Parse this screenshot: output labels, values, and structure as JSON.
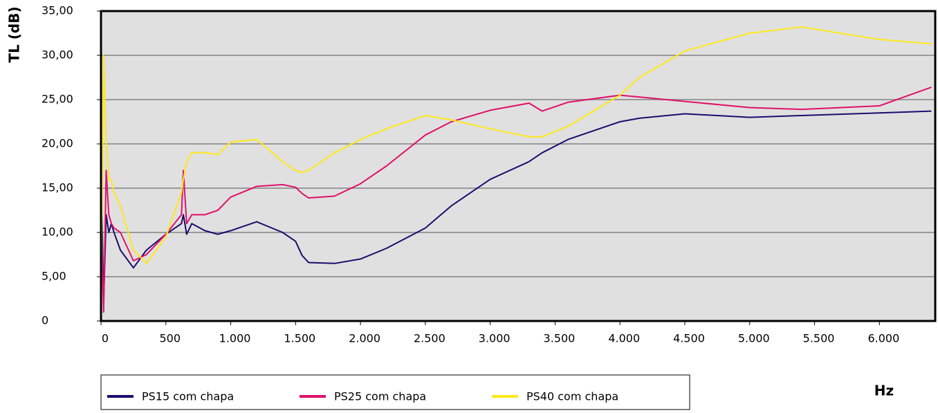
{
  "chart_data": {
    "type": "line",
    "y_label": "TL (dB)",
    "x_label": "Hz",
    "x": [
      0,
      20,
      40,
      60,
      80,
      100,
      150,
      250,
      350,
      500,
      620,
      635,
      660,
      700,
      800,
      900,
      1000,
      1200,
      1400,
      1500,
      1550,
      1600,
      1800,
      2000,
      2200,
      2500,
      2700,
      3000,
      3300,
      3400,
      3600,
      4000,
      4150,
      4500,
      5000,
      5400,
      6000,
      6400
    ],
    "series": [
      {
        "name": "PS15 com chapa",
        "color": "#1c0b6e",
        "values": [
          18,
          2,
          12,
          10,
          11,
          10,
          8,
          6,
          8,
          9.8,
          11,
          12,
          9.8,
          11,
          10.2,
          9.8,
          10.2,
          11.2,
          10,
          9,
          7.4,
          6.6,
          6.5,
          7,
          8.2,
          10.5,
          13,
          16,
          18,
          19,
          20.5,
          22.5,
          22.9,
          23.4,
          23,
          23.2,
          23.5,
          23.7
        ]
      },
      {
        "name": "PS25 com chapa",
        "color": "#e0106a",
        "values": [
          12,
          1,
          17,
          12,
          11,
          10.5,
          10,
          6.8,
          7.5,
          9.8,
          12,
          17,
          11,
          12,
          12,
          12.5,
          14,
          15.2,
          15.4,
          15.1,
          14.4,
          13.9,
          14.1,
          15.5,
          17.5,
          21,
          22.5,
          23.8,
          24.6,
          23.7,
          24.7,
          25.5,
          25.3,
          24.8,
          24.1,
          23.9,
          24.3,
          26.4
        ]
      },
      {
        "name": "PS40 com chapa",
        "color": "#ffe81a",
        "values": [
          2,
          30,
          20,
          16,
          16,
          14.5,
          13,
          8,
          6.5,
          9.5,
          14.5,
          16,
          18,
          19,
          19,
          18.8,
          20.2,
          20.5,
          18,
          17,
          16.8,
          17,
          19,
          20.5,
          21.7,
          23.2,
          22.7,
          21.7,
          20.8,
          20.8,
          22,
          25.5,
          27.5,
          30.5,
          32.5,
          33.2,
          31.8,
          31.3
        ]
      }
    ],
    "xlim": [
      0,
      6430
    ],
    "ylim": [
      0,
      35
    ],
    "xticks": [
      0,
      500,
      {
        "value": 1000,
        "label": "1.000"
      },
      {
        "value": 1500,
        "label": "1.500"
      },
      {
        "value": 2000,
        "label": "2.000"
      },
      {
        "value": 2500,
        "label": "2.500"
      },
      {
        "value": 3000,
        "label": "3.000"
      },
      {
        "value": 3500,
        "label": "3.500"
      },
      {
        "value": 4000,
        "label": "4.000"
      },
      {
        "value": 4500,
        "label": "4.500"
      },
      {
        "value": 5000,
        "label": "5.000"
      },
      {
        "value": 5500,
        "label": "5.500"
      },
      {
        "value": 6000,
        "label": "6.000"
      }
    ],
    "yticks": [
      0,
      {
        "value": 5,
        "label": "5,00"
      },
      {
        "value": 10,
        "label": "10,00"
      },
      {
        "value": 15,
        "label": "15,00"
      },
      {
        "value": 20,
        "label": "20,00"
      },
      {
        "value": 25,
        "label": "25,00"
      },
      {
        "value": 30,
        "label": "30,00"
      },
      {
        "value": 35,
        "label": "35,00"
      }
    ],
    "grid": true
  }
}
